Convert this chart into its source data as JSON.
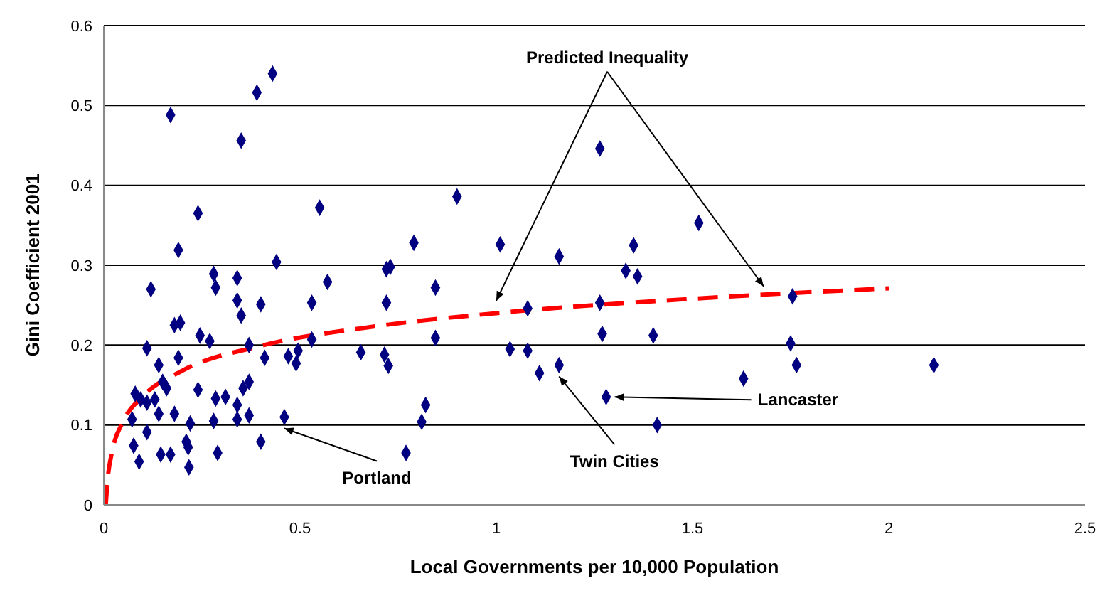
{
  "chart_data": {
    "type": "scatter",
    "xlabel": "Local Governments per 10,000 Population",
    "ylabel": "Gini Coefficient 2001",
    "xlim": [
      0,
      2.5
    ],
    "xticks": [
      0,
      0.5,
      1,
      1.5,
      2,
      2.5
    ],
    "ylim": [
      0,
      0.6
    ],
    "yticks": [
      0,
      0.1,
      0.2,
      0.3,
      0.4,
      0.5,
      0.6
    ],
    "grid": "y",
    "legend": false,
    "series": [
      {
        "type": "scatter",
        "color": "#000080",
        "marker": "diamond",
        "x": [
          0.17,
          0.39,
          0.43,
          0.35,
          0.24,
          0.55,
          0.19,
          0.44,
          0.28,
          0.34,
          0.12,
          0.285,
          0.57,
          0.34,
          0.4,
          0.53,
          0.35,
          0.18,
          0.195,
          0.245,
          0.27,
          0.11,
          0.19,
          0.37,
          0.41,
          0.47,
          0.495,
          0.49,
          0.53,
          0.14,
          0.15,
          0.16,
          0.08,
          0.094,
          0.11,
          0.13,
          0.24,
          0.285,
          0.31,
          0.37,
          0.355,
          0.34,
          0.14,
          0.18,
          0.072,
          0.22,
          0.28,
          0.34,
          0.37,
          0.46,
          0.11,
          0.076,
          0.09,
          0.145,
          0.17,
          0.21,
          0.215,
          0.217,
          0.29,
          0.4,
          0.9,
          0.79,
          1.01,
          1.16,
          0.72,
          0.73,
          0.845,
          0.72,
          1.08,
          0.845,
          0.655,
          0.715,
          0.725,
          1.035,
          1.08,
          1.11,
          1.16,
          0.82,
          0.81,
          0.77,
          1.264,
          1.516,
          1.35,
          1.33,
          1.36,
          1.264,
          1.755,
          1.27,
          1.4,
          1.75,
          1.765,
          2.115,
          1.63,
          1.28,
          1.41
        ],
        "values": [
          0.488,
          0.516,
          0.54,
          0.456,
          0.365,
          0.372,
          0.319,
          0.304,
          0.289,
          0.284,
          0.27,
          0.272,
          0.279,
          0.256,
          0.251,
          0.253,
          0.237,
          0.225,
          0.228,
          0.212,
          0.205,
          0.196,
          0.184,
          0.2,
          0.184,
          0.186,
          0.193,
          0.177,
          0.207,
          0.175,
          0.154,
          0.146,
          0.139,
          0.132,
          0.128,
          0.132,
          0.144,
          0.133,
          0.135,
          0.154,
          0.146,
          0.125,
          0.114,
          0.114,
          0.107,
          0.102,
          0.105,
          0.107,
          0.112,
          0.11,
          0.091,
          0.074,
          0.054,
          0.063,
          0.063,
          0.079,
          0.072,
          0.047,
          0.065,
          0.079,
          0.386,
          0.328,
          0.326,
          0.311,
          0.295,
          0.298,
          0.272,
          0.253,
          0.246,
          0.209,
          0.191,
          0.188,
          0.174,
          0.195,
          0.193,
          0.165,
          0.175,
          0.125,
          0.104,
          0.065,
          0.446,
          0.353,
          0.325,
          0.293,
          0.286,
          0.253,
          0.261,
          0.214,
          0.212,
          0.202,
          0.175,
          0.175,
          0.158,
          0.135,
          0.1
        ]
      },
      {
        "type": "line",
        "color": "#ff0000",
        "line_style": "dashed",
        "marker": "none",
        "x": [
          0.005,
          0.01,
          0.02,
          0.05,
          0.1,
          0.2,
          0.4,
          0.7,
          1,
          1.5,
          2
        ],
        "values": [
          0.0,
          0.033,
          0.064,
          0.105,
          0.136,
          0.168,
          0.199,
          0.224,
          0.24,
          0.258,
          0.271
        ]
      }
    ],
    "annotations": [
      {
        "text": "Predicted Inequality",
        "x": 1.0,
        "y": 0.245
      },
      {
        "text": "Portland",
        "x": 0.46,
        "y": 0.11
      },
      {
        "text": "Twin Cities",
        "x": 1.16,
        "y": 0.175
      },
      {
        "text": "Lancaster",
        "x": 1.28,
        "y": 0.135
      }
    ]
  }
}
